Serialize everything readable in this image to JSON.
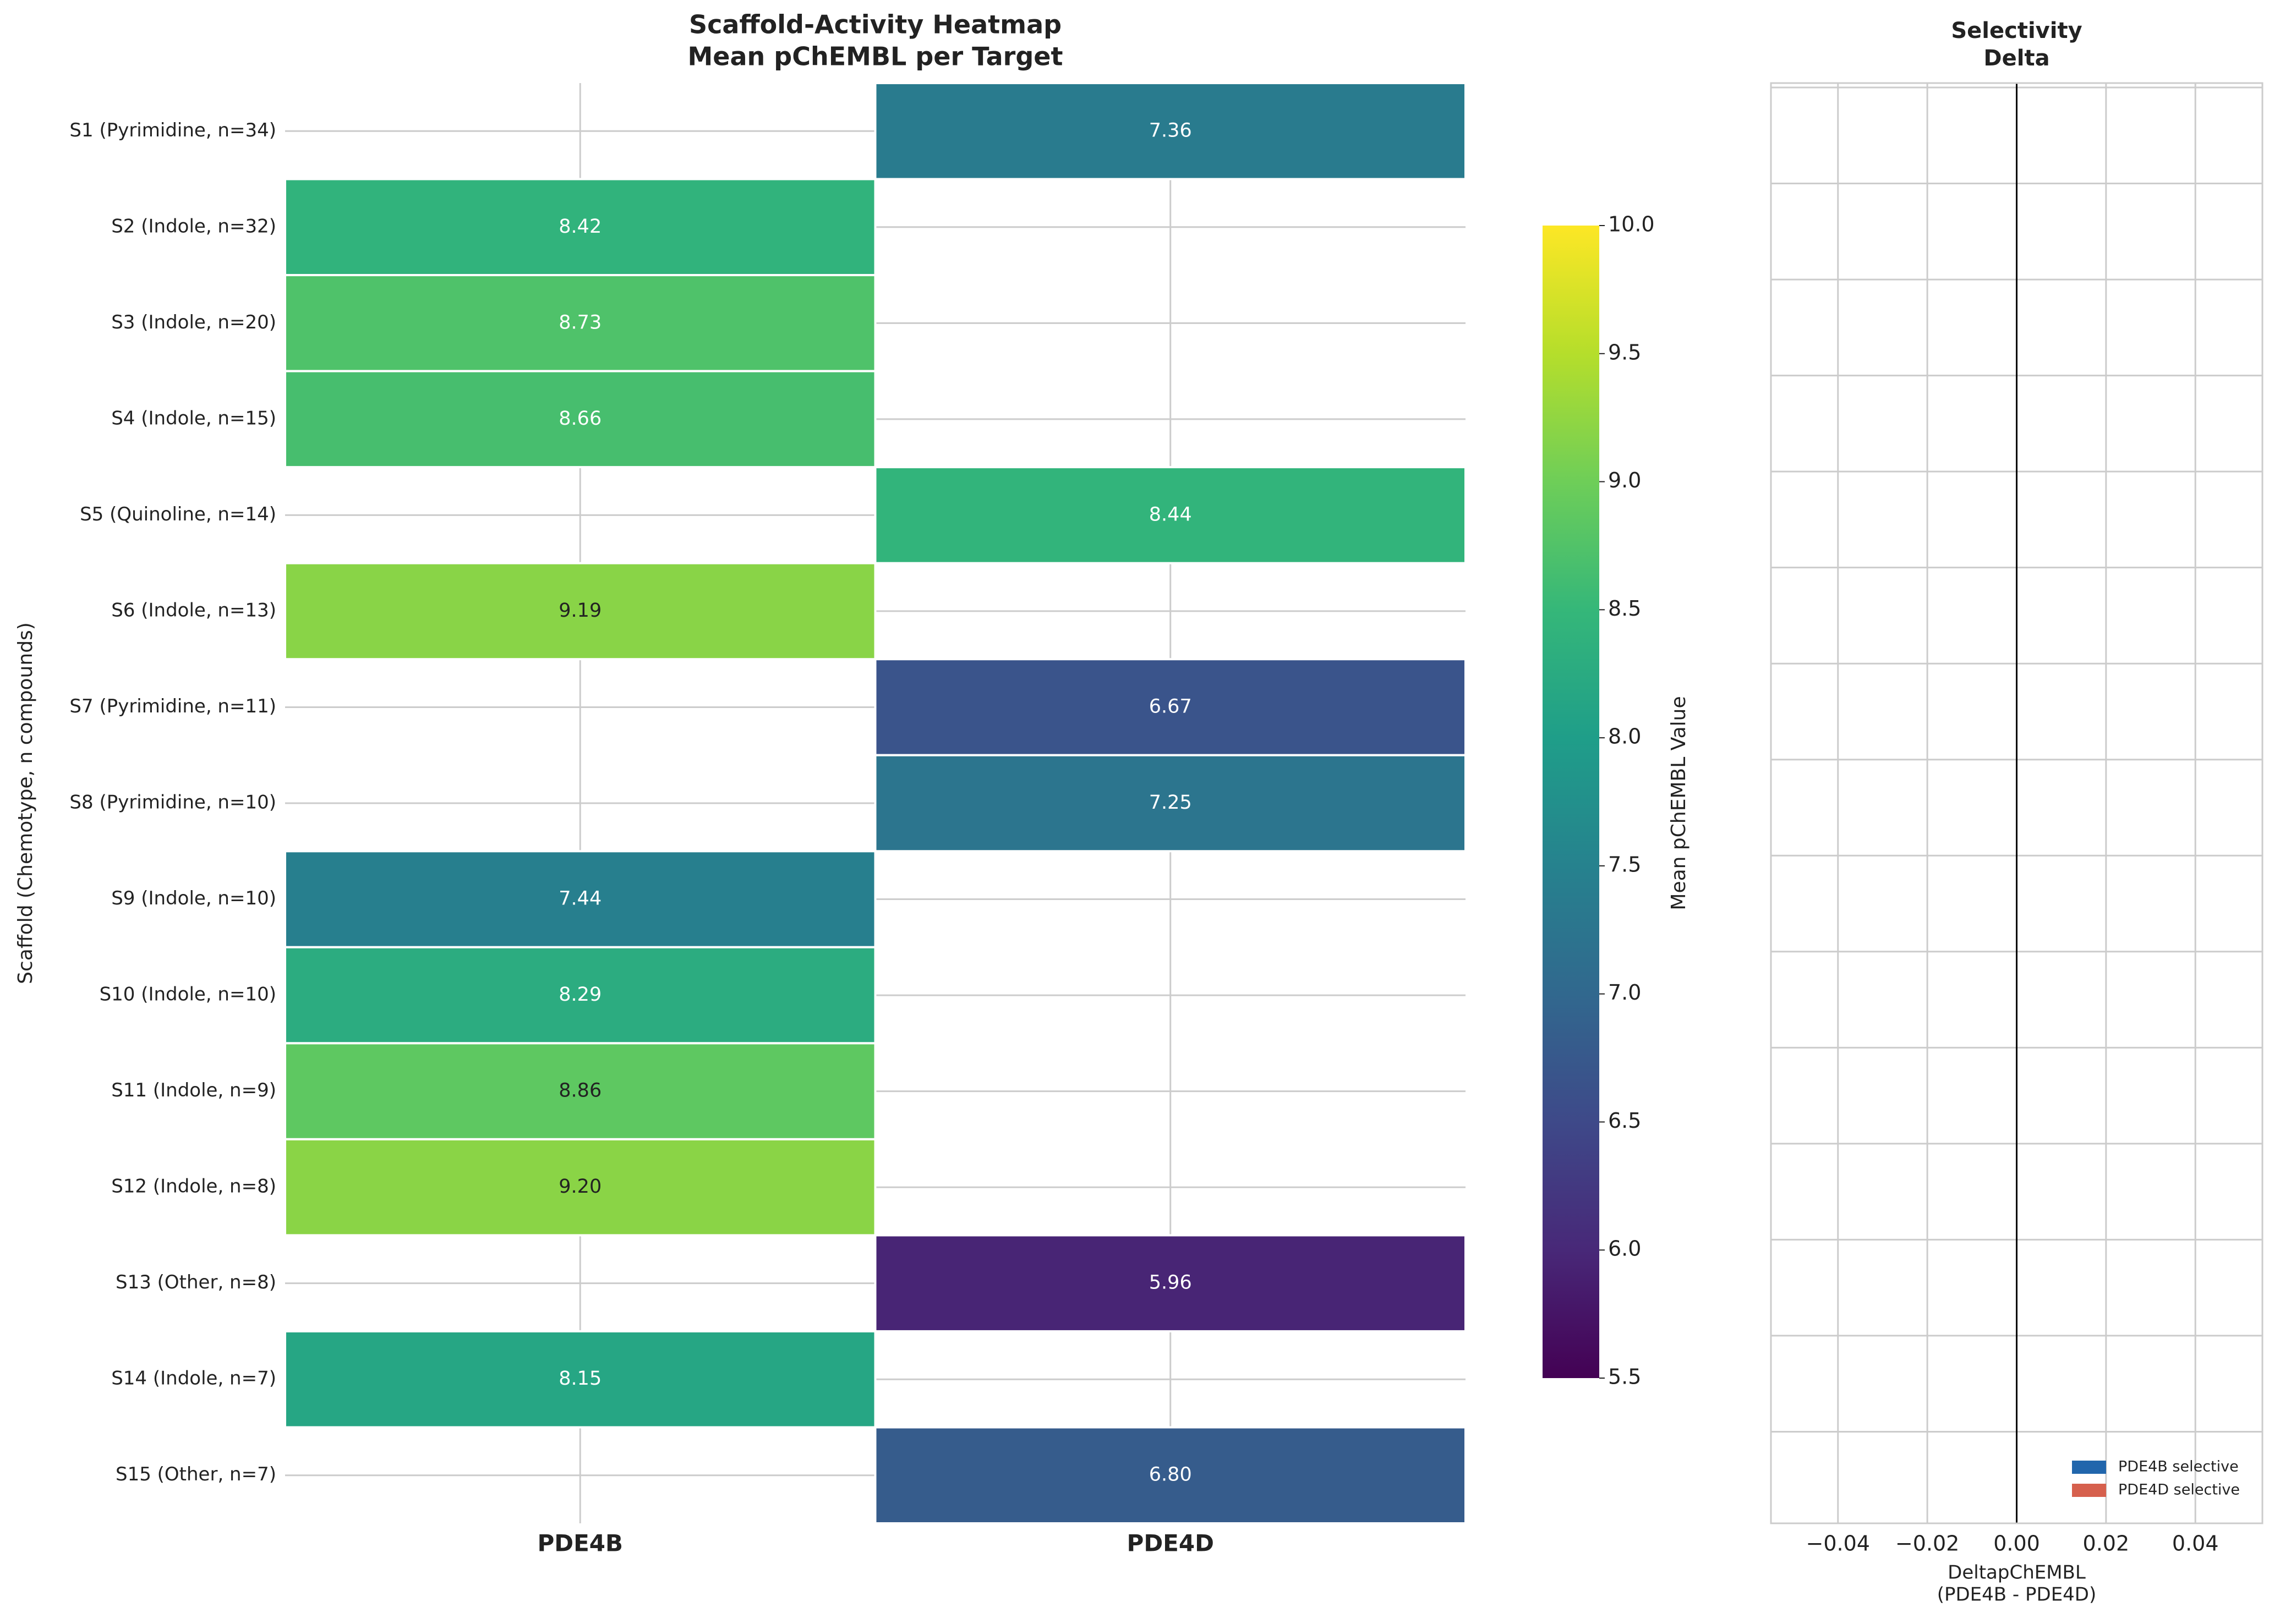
{
  "chart_data": [
    {
      "type": "heatmap",
      "title": [
        "Scaffold-Activity Heatmap",
        "Mean pChEMBL per Target"
      ],
      "ylabel": "Scaffold (Chemotype, n compounds)",
      "rows": [
        "S1 (Pyrimidine, n=34)",
        "S2 (Indole, n=32)",
        "S3 (Indole, n=20)",
        "S4 (Indole, n=15)",
        "S5 (Quinoline, n=14)",
        "S6 (Indole, n=13)",
        "S7 (Pyrimidine, n=11)",
        "S8 (Pyrimidine, n=10)",
        "S9 (Indole, n=10)",
        "S10 (Indole, n=10)",
        "S11 (Indole, n=9)",
        "S12 (Indole, n=8)",
        "S13 (Other, n=8)",
        "S14 (Indole, n=7)",
        "S15 (Other, n=7)"
      ],
      "columns": [
        "PDE4B",
        "PDE4D"
      ],
      "values": [
        [
          null,
          7.36
        ],
        [
          8.42,
          null
        ],
        [
          8.73,
          null
        ],
        [
          8.66,
          null
        ],
        [
          null,
          8.44
        ],
        [
          9.19,
          null
        ],
        [
          null,
          6.67
        ],
        [
          null,
          7.25
        ],
        [
          7.44,
          null
        ],
        [
          8.29,
          null
        ],
        [
          8.86,
          null
        ],
        [
          9.2,
          null
        ],
        [
          null,
          5.96
        ],
        [
          8.15,
          null
        ],
        [
          null,
          6.8
        ]
      ],
      "value_labels": [
        [
          null,
          "7.36"
        ],
        [
          "8.42",
          null
        ],
        [
          "8.73",
          null
        ],
        [
          "8.66",
          null
        ],
        [
          null,
          "8.44"
        ],
        [
          "9.19",
          null
        ],
        [
          null,
          "6.67"
        ],
        [
          null,
          "7.25"
        ],
        [
          "7.44",
          null
        ],
        [
          "8.29",
          null
        ],
        [
          "8.86",
          null
        ],
        [
          "9.20",
          null
        ],
        [
          null,
          "5.96"
        ],
        [
          "8.15",
          null
        ],
        [
          null,
          "6.80"
        ]
      ],
      "colormap": "viridis",
      "clim": [
        5.5,
        10
      ],
      "cticks": [
        5.5,
        {
          "value": 6,
          "label": "6.0"
        },
        6.5,
        {
          "value": 7,
          "label": "7.0"
        },
        7.5,
        {
          "value": 8,
          "label": "8.0"
        },
        8.5,
        {
          "value": 9,
          "label": "9.0"
        },
        9.5,
        {
          "value": 10,
          "label": "10.0"
        }
      ],
      "clabel": "Mean pChEMBL Value",
      "grid": true
    },
    {
      "type": "barh",
      "title": [
        "Selectivity",
        "Delta"
      ],
      "xlabel": [
        "DeltapChEMBL",
        "(PDE4B - PDE4D)"
      ],
      "categories": [
        null,
        null,
        null,
        null,
        null,
        null,
        null,
        null,
        null,
        null,
        null,
        null,
        null,
        null,
        null
      ],
      "series": [
        {
          "name": "PDE4B selective",
          "color": "#2166ac",
          "values": [
            null,
            null,
            null,
            null,
            null,
            null,
            null,
            null,
            null,
            null,
            null,
            null,
            null,
            null,
            null
          ]
        },
        {
          "name": "PDE4D selective",
          "color": "#d6604d",
          "values": [
            null,
            null,
            null,
            null,
            null,
            null,
            null,
            null,
            null,
            null,
            null,
            null,
            null,
            null,
            null
          ]
        }
      ],
      "xlim": [
        -0.055,
        0.055
      ],
      "xticks": [
        {
          "value": -0.04,
          "label": "−0.04"
        },
        {
          "value": -0.02,
          "label": "−0.02"
        },
        {
          "value": 0,
          "label": "0.00"
        },
        {
          "value": 0.02,
          "label": "0.02"
        },
        {
          "value": 0.04,
          "label": "0.04"
        }
      ],
      "zero_line": true,
      "grid": true,
      "legend": "lower right"
    }
  ]
}
